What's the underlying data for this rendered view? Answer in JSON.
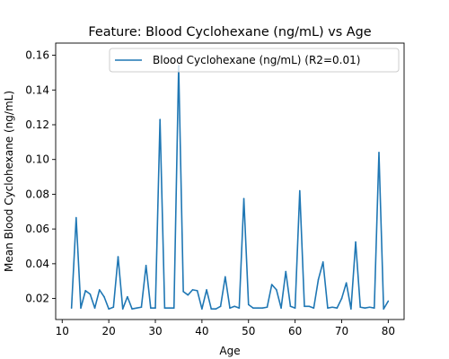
{
  "chart_data": {
    "type": "line",
    "title": "Feature: Blood Cyclohexane (ng/mL) vs Age",
    "xlabel": "Age",
    "ylabel": "Mean Blood Cyclohexane (ng/mL)",
    "xlim": [
      8.6,
      83.4
    ],
    "ylim": [
      0.0079,
      0.167
    ],
    "xticks": [
      10,
      20,
      30,
      40,
      50,
      60,
      70,
      80
    ],
    "yticks": [
      0.02,
      0.04,
      0.06,
      0.08,
      0.1,
      0.12,
      0.14,
      0.16
    ],
    "ytick_labels": [
      "0.02",
      "0.04",
      "0.06",
      "0.08",
      "0.10",
      "0.12",
      "0.14",
      "0.16"
    ],
    "grid": false,
    "legend_position": "upper right",
    "series": [
      {
        "name": "Blood Cyclohexane (ng/mL) (R2=0.01)",
        "color": "#1f77b4",
        "x": [
          12,
          13,
          14,
          15,
          16,
          17,
          18,
          19,
          20,
          21,
          22,
          23,
          24,
          25,
          26,
          27,
          28,
          29,
          30,
          31,
          32,
          33,
          34,
          35,
          36,
          37,
          38,
          39,
          40,
          41,
          42,
          43,
          44,
          45,
          46,
          47,
          48,
          49,
          50,
          51,
          52,
          53,
          54,
          55,
          56,
          57,
          58,
          59,
          60,
          61,
          62,
          63,
          64,
          65,
          66,
          67,
          68,
          69,
          70,
          71,
          72,
          73,
          74,
          75,
          76,
          77,
          78,
          79,
          80
        ],
        "y": [
          0.0145,
          0.0665,
          0.0145,
          0.0245,
          0.0225,
          0.0145,
          0.025,
          0.021,
          0.014,
          0.015,
          0.044,
          0.014,
          0.021,
          0.014,
          0.0145,
          0.015,
          0.039,
          0.0145,
          0.0145,
          0.123,
          0.0145,
          0.0145,
          0.0145,
          0.154,
          0.024,
          0.022,
          0.025,
          0.0245,
          0.014,
          0.025,
          0.014,
          0.014,
          0.0155,
          0.0325,
          0.0145,
          0.0155,
          0.0145,
          0.0775,
          0.0165,
          0.0145,
          0.0145,
          0.0145,
          0.015,
          0.028,
          0.025,
          0.0145,
          0.0355,
          0.0155,
          0.0145,
          0.082,
          0.0155,
          0.0155,
          0.0145,
          0.031,
          0.041,
          0.0145,
          0.015,
          0.0145,
          0.02,
          0.029,
          0.014,
          0.0525,
          0.015,
          0.0145,
          0.015,
          0.0145,
          0.104,
          0.014,
          0.0185
        ]
      }
    ]
  }
}
